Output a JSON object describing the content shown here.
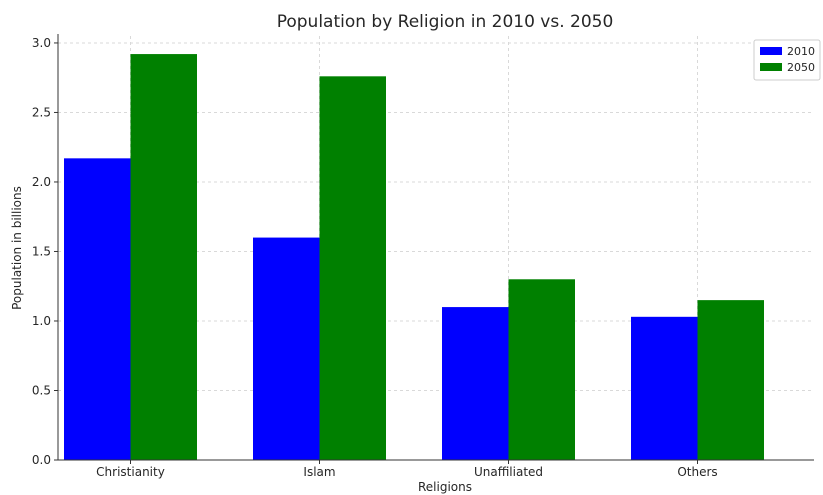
{
  "chart_data": {
    "type": "bar",
    "title": "Population by Religion in 2010 vs. 2050",
    "xlabel": "Religions",
    "ylabel": "Population in billions",
    "categories": [
      "Christianity",
      "Islam",
      "Unaffiliated",
      "Others"
    ],
    "series": [
      {
        "name": "2010",
        "values": [
          2.17,
          1.6,
          1.1,
          1.03
        ],
        "color": "#0000ff"
      },
      {
        "name": "2050",
        "values": [
          2.92,
          2.76,
          1.3,
          1.15
        ],
        "color": "#008000"
      }
    ],
    "ylim": [
      0,
      3.05
    ],
    "yticks": [
      "0.0",
      "0.5",
      "1.0",
      "1.5",
      "2.0",
      "2.5",
      "3.0"
    ],
    "grid": true,
    "legend_position": "top-right"
  }
}
